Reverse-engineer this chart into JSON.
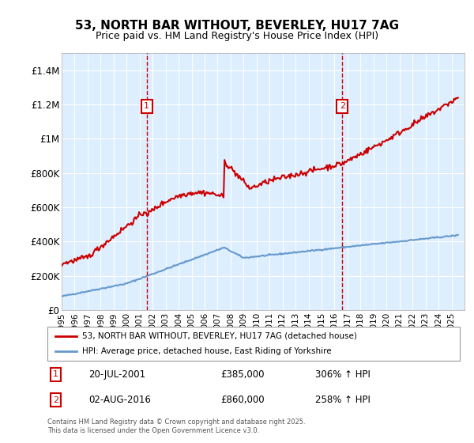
{
  "title": "53, NORTH BAR WITHOUT, BEVERLEY, HU17 7AG",
  "subtitle": "Price paid vs. HM Land Registry's House Price Index (HPI)",
  "ylabel_ticks": [
    "£0",
    "£200K",
    "£400K",
    "£600K",
    "£800K",
    "£1M",
    "£1.2M",
    "£1.4M"
  ],
  "ytick_values": [
    0,
    200000,
    400000,
    600000,
    800000,
    1000000,
    1200000,
    1400000
  ],
  "ylim": [
    0,
    1500000
  ],
  "xlim_start": 1995.0,
  "xlim_end": 2026.0,
  "sale1": {
    "date": 2001.55,
    "price": 385000,
    "label": "1",
    "date_str": "20-JUL-2001",
    "price_str": "£385,000",
    "hpi_str": "306% ↑ HPI"
  },
  "sale2": {
    "date": 2016.59,
    "price": 860000,
    "label": "2",
    "date_str": "02-AUG-2016",
    "price_str": "£860,000",
    "hpi_str": "258% ↑ HPI"
  },
  "legend_line1": "53, NORTH BAR WITHOUT, BEVERLEY, HU17 7AG (detached house)",
  "legend_line2": "HPI: Average price, detached house, East Riding of Yorkshire",
  "footer": "Contains HM Land Registry data © Crown copyright and database right 2025.\nThis data is licensed under the Open Government Licence v3.0.",
  "line_color_property": "#cc0000",
  "line_color_hpi": "#6699cc",
  "bg_color": "#ddeeff",
  "annotation_box_color": "#cc0000"
}
